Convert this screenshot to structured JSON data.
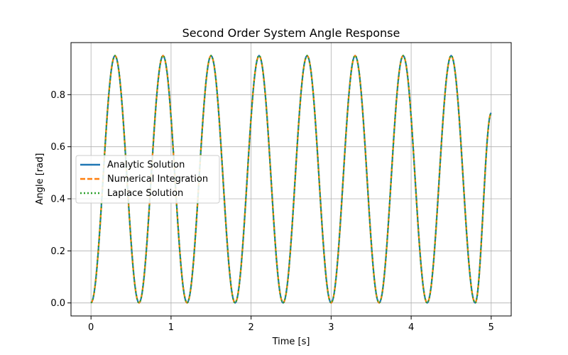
{
  "chart_data": {
    "type": "line",
    "title": "Second Order System Angle Response",
    "xlabel": "Time [s]",
    "ylabel": "Angle [rad]",
    "xlim": [
      -0.25,
      5.25
    ],
    "ylim": [
      -0.05,
      1.0
    ],
    "x_ticks": [
      0,
      1,
      2,
      3,
      4,
      5
    ],
    "x_tick_labels": [
      "0",
      "1",
      "2",
      "3",
      "4",
      "5"
    ],
    "y_ticks": [
      0.0,
      0.2,
      0.4,
      0.6,
      0.8
    ],
    "y_tick_labels": [
      "0.0",
      "0.2",
      "0.4",
      "0.6",
      "0.8"
    ],
    "grid": true,
    "legend_position": "center-left",
    "series": [
      {
        "name": "Analytic Solution",
        "color": "#1f77b4",
        "style": "solid",
        "x": [
          0,
          0.3,
          0.6,
          0.9,
          1.2,
          1.5,
          1.8,
          2.1,
          2.4,
          2.7,
          3.0,
          3.3,
          3.6,
          3.9,
          4.2,
          4.5,
          4.8,
          5.0
        ],
        "y": [
          0.0,
          0.95,
          0.0,
          0.95,
          0.0,
          0.95,
          0.0,
          0.95,
          0.0,
          0.95,
          0.0,
          0.95,
          0.0,
          0.95,
          0.0,
          0.95,
          0.0,
          0.73
        ]
      },
      {
        "name": "Numerical Integration",
        "color": "#ff7f0e",
        "style": "dashed",
        "x": [
          0,
          0.3,
          0.6,
          0.9,
          1.2,
          1.5,
          1.8,
          2.1,
          2.4,
          2.7,
          3.0,
          3.3,
          3.6,
          3.9,
          4.2,
          4.5,
          4.8,
          5.0
        ],
        "y": [
          0.0,
          0.95,
          0.0,
          0.95,
          0.0,
          0.95,
          0.0,
          0.95,
          0.0,
          0.95,
          0.0,
          0.95,
          0.0,
          0.95,
          0.0,
          0.95,
          0.0,
          0.73
        ]
      },
      {
        "name": "Laplace Solution",
        "color": "#2ca02c",
        "style": "dotted",
        "x": [
          0,
          0.3,
          0.6,
          0.9,
          1.2,
          1.5,
          1.8,
          2.1,
          2.4,
          2.7,
          3.0,
          3.3,
          3.6,
          3.9,
          4.2,
          4.5,
          4.8,
          5.0
        ],
        "y": [
          0.0,
          0.95,
          0.0,
          0.95,
          0.0,
          0.95,
          0.0,
          0.95,
          0.0,
          0.95,
          0.0,
          0.95,
          0.0,
          0.95,
          0.0,
          0.95,
          0.0,
          0.73
        ]
      }
    ]
  }
}
